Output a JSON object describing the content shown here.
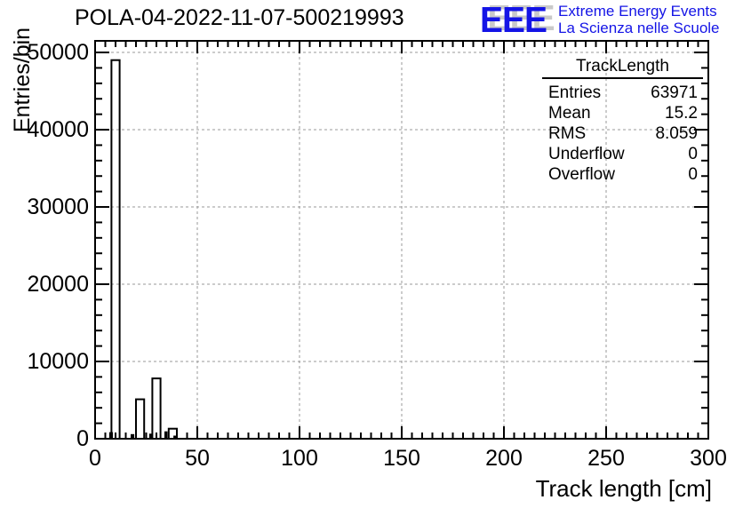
{
  "header": {
    "logo": {
      "acronym": "EEE",
      "line1": "Extreme Energy Events",
      "line2": "La Scienza nelle Scuole",
      "color": "#1414e6",
      "shadow_color": "#c9c9c9"
    }
  },
  "stats_box": {
    "title": "TrackLength",
    "rows": [
      {
        "label": "Entries",
        "value": "63971"
      },
      {
        "label": "Mean",
        "value": "15.2"
      },
      {
        "label": "RMS",
        "value": "8.059"
      },
      {
        "label": "Underflow",
        "value": "0"
      },
      {
        "label": "Overflow",
        "value": "0"
      }
    ]
  },
  "chart_data": {
    "type": "bar",
    "title": "POLA-04-2022-11-07-500219993",
    "xlabel": "Track length [cm]",
    "ylabel": "Entries/bin",
    "xlim": [
      0,
      300
    ],
    "ylim": [
      0,
      51500
    ],
    "x_major_ticks": [
      0,
      50,
      100,
      150,
      200,
      250,
      300
    ],
    "x_minor_step": 5,
    "y_major_ticks": [
      0,
      10000,
      20000,
      30000,
      40000,
      50000
    ],
    "y_minor_step": 2000,
    "grid": "dashed gray lines at major ticks on both axes",
    "legend": "none",
    "bin_width_cm": 4,
    "series": [
      {
        "name": "TrackLength-outline",
        "fill": "hollow",
        "bars": [
          {
            "x0": 8,
            "x1": 12,
            "y": 49000
          },
          {
            "x0": 20,
            "x1": 24,
            "y": 5100
          },
          {
            "x0": 28,
            "x1": 32,
            "y": 7800
          },
          {
            "x0": 36,
            "x1": 40,
            "y": 1300
          }
        ]
      },
      {
        "name": "TrackLength-filled",
        "fill": "solid",
        "bars": [
          {
            "x0": 6.9,
            "x1": 8.7,
            "y": 850
          },
          {
            "x0": 17.4,
            "x1": 19.2,
            "y": 600
          },
          {
            "x0": 26.5,
            "x1": 28.3,
            "y": 650
          },
          {
            "x0": 33.9,
            "x1": 35.4,
            "y": 950
          },
          {
            "x0": 38.3,
            "x1": 39.9,
            "y": 400
          }
        ]
      }
    ]
  }
}
